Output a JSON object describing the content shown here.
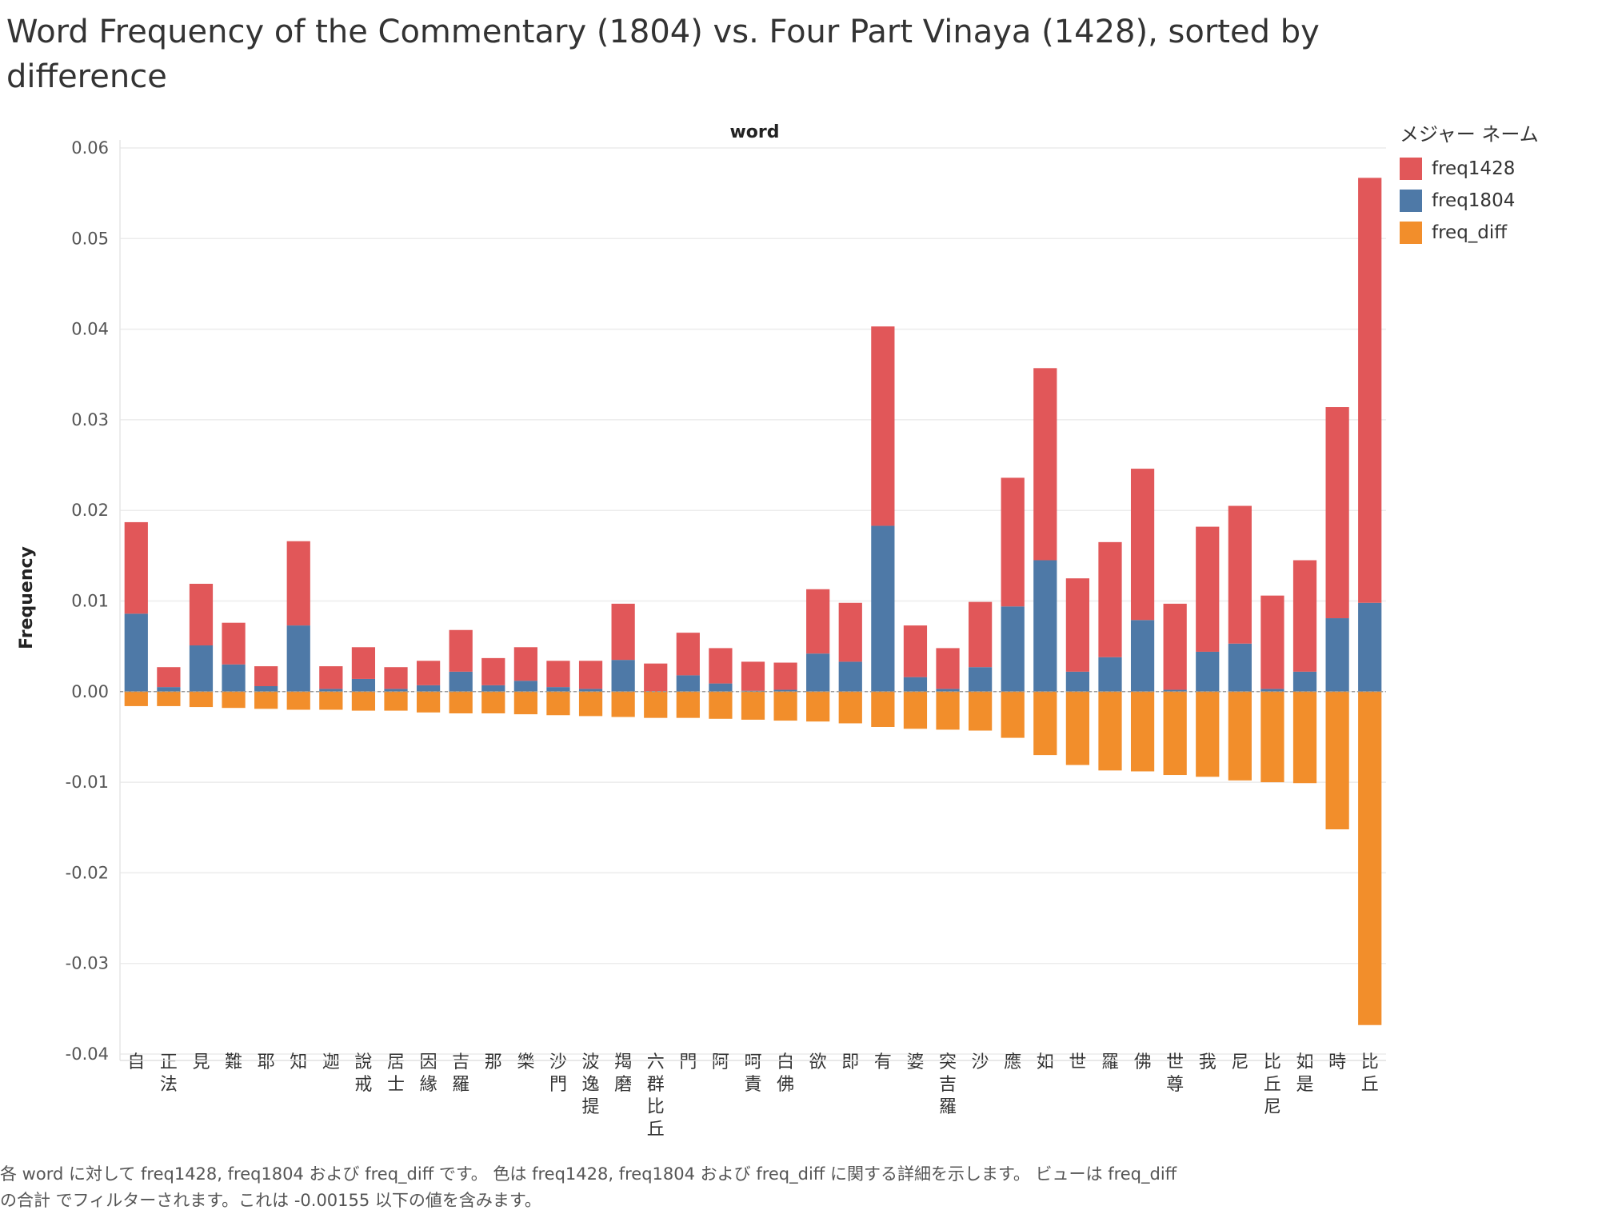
{
  "chart_data": {
    "type": "bar",
    "title": "Word Frequency of the Commentary (1804) vs. Four Part Vinaya (1428), sorted by difference",
    "xlabel": "word",
    "ylabel": "Frequency",
    "ylim": [
      -0.04,
      0.06
    ],
    "yticks": [
      0.06,
      0.05,
      0.04,
      0.03,
      0.02,
      0.01,
      0.0,
      -0.01,
      -0.02,
      -0.03,
      -0.04
    ],
    "ytick_labels": [
      "0.06",
      "0.05",
      "0.04",
      "0.03",
      "0.02",
      "0.01",
      "0.00",
      "-0.01",
      "-0.02",
      "-0.03",
      "-0.04"
    ],
    "grid": true,
    "legend_title": "メジャー ネーム",
    "legend_position": "top-right",
    "categories": [
      "自",
      "正法",
      "見",
      "難",
      "耶",
      "知",
      "迦",
      "說戒",
      "居士",
      "因緣",
      "吉羅",
      "那",
      "樂",
      "沙門",
      "波逸提",
      "羯磨",
      "六群比丘",
      "門",
      "阿",
      "呵責",
      "白佛",
      "欲",
      "即",
      "有",
      "婆",
      "突吉羅",
      "沙",
      "應",
      "如",
      "世",
      "羅",
      "佛",
      "世尊",
      "我",
      "尼",
      "比丘尼",
      "如是",
      "時",
      "比丘"
    ],
    "series": [
      {
        "name": "freq1428",
        "color": "#e15759",
        "stacked_on": "freq1804",
        "values": [
          0.0101,
          0.0022,
          0.0068,
          0.0046,
          0.0022,
          0.0093,
          0.0025,
          0.0035,
          0.0024,
          0.0027,
          0.0046,
          0.003,
          0.0037,
          0.0029,
          0.0031,
          0.0062,
          0.0031,
          0.0047,
          0.0039,
          0.0032,
          0.003,
          0.0071,
          0.0065,
          0.022,
          0.0057,
          0.0045,
          0.0072,
          0.0142,
          0.0212,
          0.0103,
          0.0127,
          0.0167,
          0.0095,
          0.0138,
          0.0152,
          0.0103,
          0.0123,
          0.0233,
          0.0469
        ]
      },
      {
        "name": "freq1804",
        "color": "#4e79a7",
        "values": [
          0.0086,
          0.0005,
          0.0051,
          0.003,
          0.0006,
          0.0073,
          0.0003,
          0.0014,
          0.0003,
          0.0007,
          0.0022,
          0.0007,
          0.0012,
          0.0005,
          0.0003,
          0.0035,
          -0.0002,
          0.0018,
          0.0009,
          0.0001,
          0.0002,
          0.0042,
          0.0033,
          0.0183,
          0.0016,
          0.0003,
          0.0027,
          0.0094,
          0.0145,
          0.0022,
          0.0038,
          0.0079,
          0.0002,
          0.0044,
          0.0053,
          0.0003,
          0.0022,
          0.0081,
          0.0098
        ]
      },
      {
        "name": "freq_diff",
        "color": "#f28e2b",
        "values": [
          -0.0016,
          -0.0016,
          -0.0017,
          -0.0018,
          -0.0019,
          -0.002,
          -0.002,
          -0.0021,
          -0.0021,
          -0.0023,
          -0.0024,
          -0.0024,
          -0.0025,
          -0.0026,
          -0.0027,
          -0.0028,
          -0.0029,
          -0.0029,
          -0.003,
          -0.0031,
          -0.0032,
          -0.0033,
          -0.0035,
          -0.0039,
          -0.0041,
          -0.0042,
          -0.0043,
          -0.0051,
          -0.007,
          -0.0081,
          -0.0087,
          -0.0088,
          -0.0092,
          -0.0094,
          -0.0098,
          -0.01,
          -0.0101,
          -0.0152,
          -0.0368
        ]
      }
    ]
  },
  "caption": {
    "line1": "各 word に対して freq1428, freq1804 および freq_diff です。 色は freq1428, freq1804 および freq_diff に関する詳細を示します。 ビューは freq_diff",
    "line2": "の合計 でフィルターされます。これは -0.00155 以下の値を含みます。"
  }
}
